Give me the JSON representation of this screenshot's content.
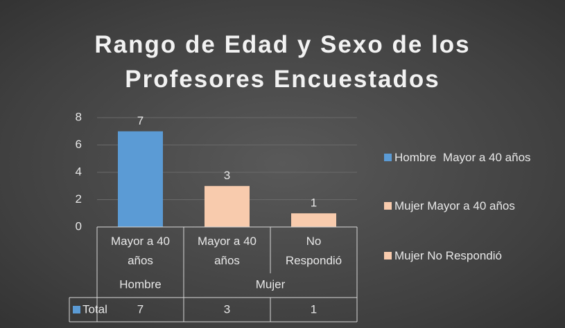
{
  "chart_data": {
    "type": "bar",
    "title": "Rango de Edad y Sexo de los Profesores Encuestados",
    "groups": [
      {
        "name": "Hombre",
        "categories": [
          "Mayor a 40 años"
        ]
      },
      {
        "name": "Mujer",
        "categories": [
          "Mayor a 40 años",
          "No Respondió"
        ]
      }
    ],
    "series": [
      {
        "name": "Total",
        "color": "#5b9bd5",
        "values": [
          7,
          3,
          1
        ],
        "colors": [
          "#5b9bd5",
          "#f8cbad",
          "#f8cbad"
        ]
      }
    ],
    "legend": [
      "Hombre  Mayor a 40 años",
      "Mujer Mayor a 40 años",
      "Mujer No Respondió"
    ],
    "ylim": [
      0,
      8
    ],
    "yticks": [
      0,
      2,
      4,
      6,
      8
    ],
    "grid": true,
    "data_table": true
  }
}
